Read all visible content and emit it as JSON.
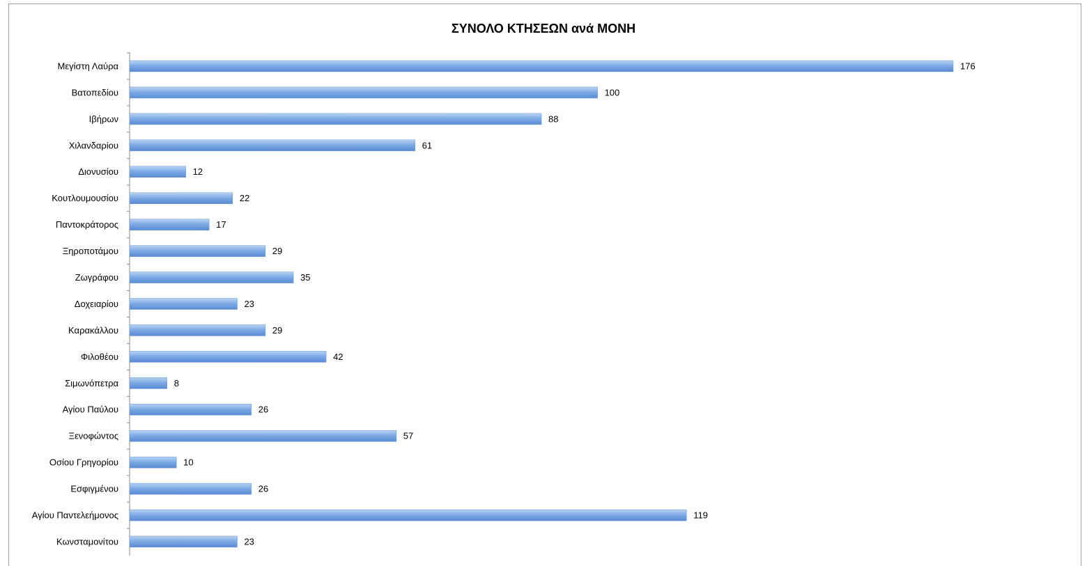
{
  "chart_data": {
    "type": "bar",
    "orientation": "horizontal",
    "title": "ΣΥΝΟΛΟ ΚΤΗΣΕΩΝ ανά ΜΟΝΗ",
    "categories": [
      "Μεγίστη Λαύρα",
      "Βατοπεδίου",
      "Ιβήρων",
      "Χιλανδαρίου",
      "Διονυσίου",
      "Κουτλουμουσίου",
      "Παντοκράτορος",
      "Ξηροποτάμου",
      "Ζωγράφου",
      "Δοχειαρίου",
      "Καρακάλλου",
      "Φιλοθέου",
      "Σιμωνόπετρα",
      "Αγίου Παύλου",
      "Ξενοφώντος",
      "Οσίου Γρηγορίου",
      "Εσφιγμένου",
      "Αγίου Παντελεήμονος",
      "Κωνσταμονίτου"
    ],
    "values": [
      176,
      100,
      88,
      61,
      12,
      22,
      17,
      29,
      35,
      23,
      29,
      42,
      8,
      26,
      57,
      10,
      26,
      119,
      23
    ],
    "color": "#7aa7e4",
    "data_labels": true
  }
}
